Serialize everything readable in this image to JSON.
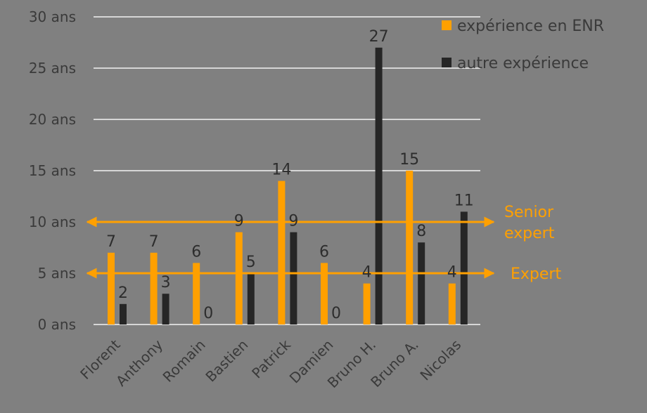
{
  "chart_data": {
    "type": "bar",
    "categories": [
      "Florent",
      "Anthony",
      "Romain",
      "Bastien",
      "Patrick",
      "Damien",
      "Bruno H.",
      "Bruno A.",
      "Nicolas"
    ],
    "series": [
      {
        "name": "expérience en ENR",
        "color": "#ffa000",
        "values": [
          7,
          7,
          6,
          9,
          14,
          6,
          4,
          15,
          4
        ]
      },
      {
        "name": "autre expérience",
        "color": "#262626",
        "values": [
          2,
          3,
          0,
          5,
          9,
          0,
          27,
          8,
          11
        ]
      }
    ],
    "y_ticks": [
      {
        "value": 0,
        "label": "0 ans"
      },
      {
        "value": 5,
        "label": "5 ans"
      },
      {
        "value": 10,
        "label": "10 ans"
      },
      {
        "value": 15,
        "label": "15 ans"
      },
      {
        "value": 20,
        "label": "20 ans"
      },
      {
        "value": 25,
        "label": "25 ans"
      },
      {
        "value": 30,
        "label": "30 ans"
      }
    ],
    "ylim": [
      0,
      30
    ],
    "grid": true,
    "legend_position": "top-right",
    "reference_lines": [
      {
        "value": 10,
        "label": [
          "Senior",
          "expert"
        ],
        "color": "#ffa000"
      },
      {
        "value": 5,
        "label": [
          "Expert"
        ],
        "color": "#ffa000"
      }
    ]
  }
}
